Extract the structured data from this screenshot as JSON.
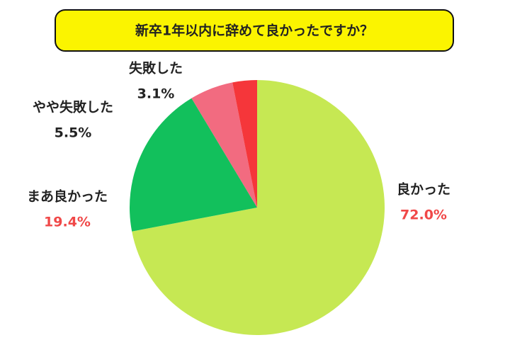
{
  "chart_data": {
    "type": "pie",
    "title": "新卒1年以内に辞めて良かったですか？",
    "categories": [
      "良かった",
      "まあ良かった",
      "やや失敗した",
      "失敗した"
    ],
    "values": [
      72.0,
      19.4,
      5.5,
      3.1
    ],
    "value_labels": [
      "72.0%",
      "19.4%",
      "5.5%",
      "3.1%"
    ],
    "colors": [
      "#c6e853",
      "#12c05c",
      "#f26b80",
      "#f5363a"
    ],
    "value_label_colors": [
      "#f04848",
      "#f04848",
      "#222222",
      "#222222"
    ],
    "start_angle": 90,
    "direction": "clockwise"
  }
}
